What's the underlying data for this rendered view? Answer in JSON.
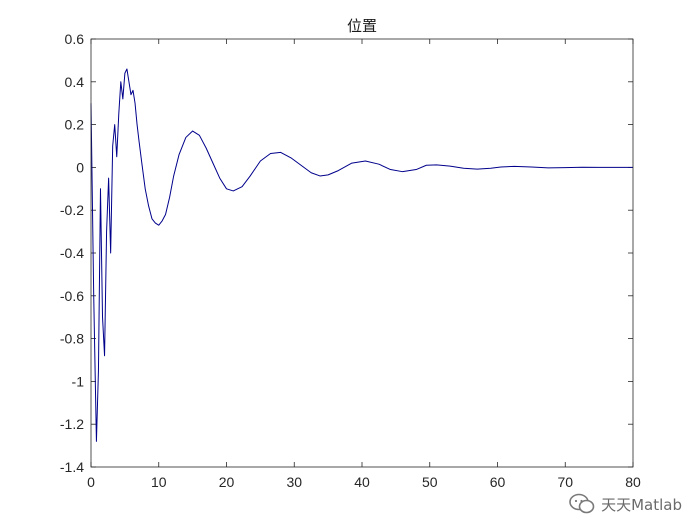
{
  "chart_data": {
    "type": "line",
    "title": "位置",
    "xlabel": "",
    "ylabel": "",
    "xlim": [
      0,
      80
    ],
    "ylim": [
      -1.4,
      0.6
    ],
    "xticks": [
      "0",
      "10",
      "20",
      "30",
      "40",
      "50",
      "60",
      "70",
      "80"
    ],
    "yticks": [
      "0.6",
      "0.4",
      "0.2",
      "0",
      "-0.2",
      "-0.4",
      "-0.6",
      "-0.8",
      "-1",
      "-1.2",
      "-1.4"
    ],
    "grid": false,
    "legend": "none",
    "series": [
      {
        "color": "#00008b",
        "x": [
          0,
          0.4,
          0.8,
          1.1,
          1.4,
          1.7,
          2.0,
          2.3,
          2.6,
          2.9,
          3.2,
          3.5,
          3.8,
          4.1,
          4.4,
          4.7,
          5.0,
          5.3,
          5.6,
          5.9,
          6.2,
          6.5,
          6.8,
          7.1,
          7.5,
          8.0,
          8.5,
          9.0,
          9.5,
          10.0,
          10.5,
          11.0,
          11.6,
          12.2,
          13.0,
          14.0,
          15.0,
          16.0,
          17.0,
          18.0,
          19.0,
          20.0,
          21.0,
          22.3,
          23.5,
          25.0,
          26.5,
          28.0,
          29.5,
          31.0,
          32.5,
          33.8,
          35.0,
          36.5,
          38.5,
          40.5,
          42.5,
          44.2,
          46.0,
          48.0,
          49.5,
          51.0,
          53.0,
          55.0,
          57.0,
          59.0,
          60.5,
          62.5,
          65.0,
          67.5,
          70.0,
          72.5,
          75.0,
          77.5,
          80.0
        ],
        "y": [
          0.3,
          -0.6,
          -1.28,
          -0.95,
          -0.1,
          -0.7,
          -0.88,
          -0.3,
          -0.05,
          -0.4,
          0.1,
          0.2,
          0.05,
          0.25,
          0.4,
          0.32,
          0.44,
          0.46,
          0.4,
          0.34,
          0.36,
          0.3,
          0.2,
          0.12,
          0.02,
          -0.1,
          -0.18,
          -0.24,
          -0.26,
          -0.27,
          -0.25,
          -0.22,
          -0.14,
          -0.04,
          0.06,
          0.14,
          0.17,
          0.15,
          0.09,
          0.02,
          -0.05,
          -0.1,
          -0.11,
          -0.09,
          -0.04,
          0.03,
          0.065,
          0.07,
          0.045,
          0.01,
          -0.025,
          -0.04,
          -0.035,
          -0.015,
          0.02,
          0.03,
          0.015,
          -0.01,
          -0.02,
          -0.01,
          0.01,
          0.012,
          0.006,
          -0.004,
          -0.008,
          -0.004,
          0.002,
          0.005,
          0.002,
          -0.002,
          -0.001,
          0.001,
          0.0,
          0.0,
          0.0
        ]
      }
    ]
  },
  "watermark": {
    "text": "天天Matlab",
    "icon": "wechat-icon"
  }
}
